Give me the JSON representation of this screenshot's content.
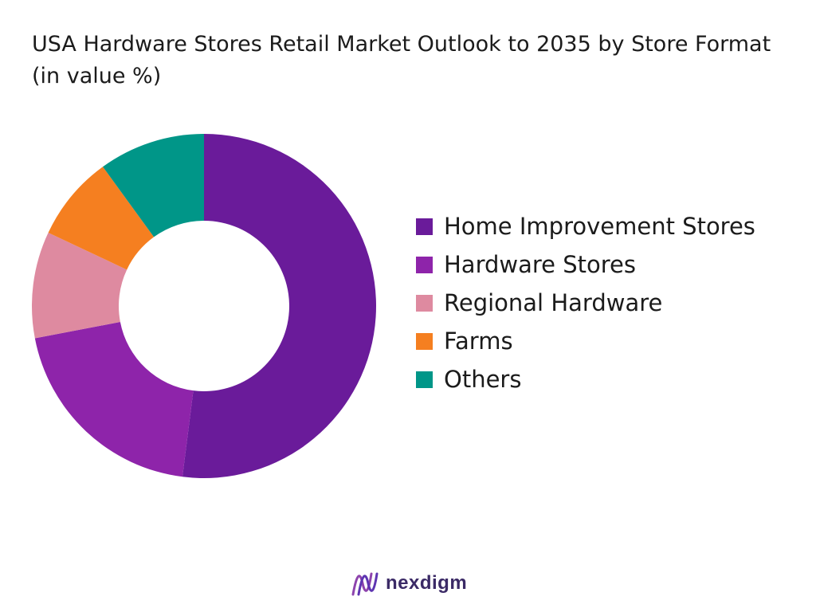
{
  "colors": {
    "home_improvement": "#6a1b9a",
    "hardware_stores": "#8e24aa",
    "regional_hardware": "#de8aa0",
    "farms": "#f57f20",
    "others": "#009688",
    "brand": "#3b2a66"
  },
  "chart_data": {
    "type": "pie",
    "style": "donut",
    "title": "USA Hardware Stores Retail Market Outlook to 2035 by Store Format (in value %)",
    "legend_position": "right",
    "slices": [
      {
        "name": "Home Improvement Stores",
        "value": 52,
        "color": "#6a1b9a"
      },
      {
        "name": "Hardware Stores",
        "value": 20,
        "color": "#8e24aa"
      },
      {
        "name": "Regional Hardware",
        "value": 10,
        "color": "#de8aa0"
      },
      {
        "name": "Farms",
        "value": 8,
        "color": "#f57f20"
      },
      {
        "name": "Others",
        "value": 10,
        "color": "#009688"
      }
    ]
  },
  "branding": {
    "logo_icon": "nexdigm-wave-icon",
    "name": "nexdigm"
  }
}
